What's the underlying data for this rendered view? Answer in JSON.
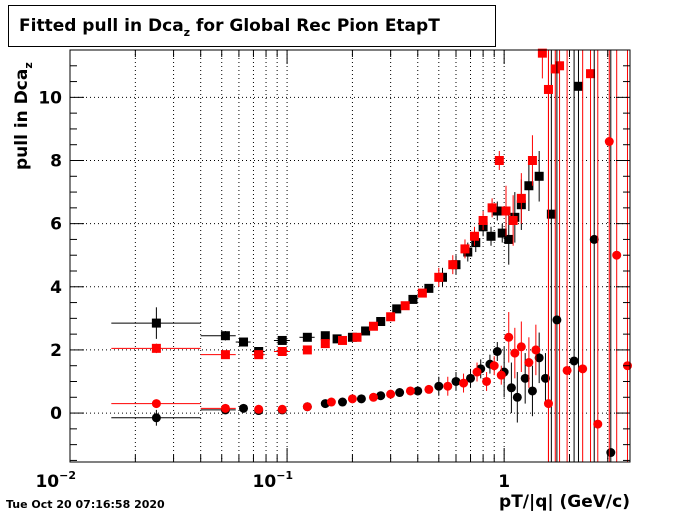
{
  "title": {
    "main": "Fitted pull in Dca",
    "sub": "z",
    "rest": " for Global Rec Pion EtapT"
  },
  "ylabel": {
    "main": "pull in Dca",
    "sub": "z"
  },
  "xlabel": "pT/|q| (GeV/c)",
  "timestamp": "Tue Oct 20 07:16:58 2020",
  "colors": {
    "black": "#000000",
    "red": "#ff0000"
  },
  "chart_data": {
    "type": "scatter",
    "xscale": "log",
    "xlim": [
      0.01,
      3.8
    ],
    "ylim": [
      -1.55,
      11.5
    ],
    "grid": true,
    "x_tick_labels": [
      {
        "value": 0.01,
        "base": "10",
        "exp": "−2"
      },
      {
        "value": 0.1,
        "base": "10",
        "exp": "−1"
      },
      {
        "value": 1,
        "base": "1",
        "exp": ""
      }
    ],
    "y_tick_labels": [
      0,
      2,
      4,
      6,
      8,
      10
    ],
    "series": [
      {
        "color": "black",
        "marker": "square",
        "points": [
          {
            "x": 0.025,
            "y": 2.85,
            "xerr": [
              0.0095,
              0.015
            ],
            "yerr": 0.5
          },
          {
            "x": 0.052,
            "y": 2.45,
            "xerr": [
              0.012,
              0.006
            ],
            "yerr": 0.15
          },
          {
            "x": 0.063,
            "y": 2.25,
            "xerr": [
              0.005,
              0.005
            ],
            "yerr": 0.12
          },
          {
            "x": 0.074,
            "y": 1.95,
            "xerr": [
              0.005,
              0.005
            ],
            "yerr": 0.1
          },
          {
            "x": 0.095,
            "y": 2.3,
            "xerr": [
              0.008,
              0.008
            ],
            "yerr": 0.1
          },
          {
            "x": 0.124,
            "y": 2.4,
            "xerr": [
              0.01,
              0.01
            ],
            "yerr": 0.1
          },
          {
            "x": 0.15,
            "y": 2.45
          },
          {
            "x": 0.17,
            "y": 2.35
          },
          {
            "x": 0.2,
            "y": 2.4
          },
          {
            "x": 0.23,
            "y": 2.6
          },
          {
            "x": 0.27,
            "y": 2.9
          },
          {
            "x": 0.32,
            "y": 3.3
          },
          {
            "x": 0.38,
            "y": 3.6
          },
          {
            "x": 0.45,
            "y": 3.95
          },
          {
            "x": 0.52,
            "y": 4.3
          },
          {
            "x": 0.6,
            "y": 4.7
          },
          {
            "x": 0.68,
            "y": 5.1
          },
          {
            "x": 0.74,
            "y": 5.4
          },
          {
            "x": 0.8,
            "y": 5.9
          },
          {
            "x": 0.87,
            "y": 5.6
          },
          {
            "x": 0.93,
            "y": 6.4
          },
          {
            "x": 0.98,
            "y": 5.7
          },
          {
            "x": 1.05,
            "y": 5.5
          },
          {
            "x": 1.12,
            "y": 6.2
          },
          {
            "x": 1.2,
            "y": 6.6
          },
          {
            "x": 1.3,
            "y": 7.2
          },
          {
            "x": 1.45,
            "y": 7.5
          },
          {
            "x": 1.65,
            "y": 6.3
          },
          {
            "x": 2.2,
            "y": 10.35
          }
        ]
      },
      {
        "color": "red",
        "marker": "square",
        "points": [
          {
            "x": 0.025,
            "y": 2.05,
            "xerr": [
              0.0095,
              0.015
            ],
            "yerr": 0.15
          },
          {
            "x": 0.052,
            "y": 1.85,
            "xerr": [
              0.012,
              0.006
            ],
            "yerr": 0.08
          },
          {
            "x": 0.074,
            "y": 1.85,
            "xerr": [
              0.005,
              0.005
            ],
            "yerr": 0.07
          },
          {
            "x": 0.095,
            "y": 1.95,
            "xerr": [
              0.008,
              0.008
            ],
            "yerr": 0.07
          },
          {
            "x": 0.124,
            "y": 2.0
          },
          {
            "x": 0.15,
            "y": 2.2
          },
          {
            "x": 0.18,
            "y": 2.3
          },
          {
            "x": 0.21,
            "y": 2.4
          },
          {
            "x": 0.25,
            "y": 2.75
          },
          {
            "x": 0.3,
            "y": 3.05
          },
          {
            "x": 0.35,
            "y": 3.4
          },
          {
            "x": 0.42,
            "y": 3.8
          },
          {
            "x": 0.5,
            "y": 4.3
          },
          {
            "x": 0.58,
            "y": 4.7
          },
          {
            "x": 0.66,
            "y": 5.2
          },
          {
            "x": 0.73,
            "y": 5.6
          },
          {
            "x": 0.8,
            "y": 6.1
          },
          {
            "x": 0.88,
            "y": 6.5
          },
          {
            "x": 0.95,
            "y": 8.0
          },
          {
            "x": 1.02,
            "y": 6.4
          },
          {
            "x": 1.1,
            "y": 6.1
          },
          {
            "x": 1.2,
            "y": 6.8
          },
          {
            "x": 1.35,
            "y": 8.0
          },
          {
            "x": 1.5,
            "y": 11.4
          },
          {
            "x": 1.6,
            "y": 10.25
          },
          {
            "x": 1.72,
            "y": 10.9
          },
          {
            "x": 1.8,
            "y": 11.0
          },
          {
            "x": 2.5,
            "y": 10.75
          }
        ]
      },
      {
        "color": "black",
        "marker": "circle",
        "points": [
          {
            "x": 0.025,
            "y": -0.15,
            "xerr": [
              0.0095,
              0.015
            ],
            "yerr": 0.25
          },
          {
            "x": 0.052,
            "y": 0.1,
            "xerr": [
              0.012,
              0.006
            ],
            "yerr": 0.08
          },
          {
            "x": 0.063,
            "y": 0.15
          },
          {
            "x": 0.074,
            "y": 0.08
          },
          {
            "x": 0.095,
            "y": 0.1
          },
          {
            "x": 0.124,
            "y": 0.2
          },
          {
            "x": 0.15,
            "y": 0.3
          },
          {
            "x": 0.18,
            "y": 0.35
          },
          {
            "x": 0.22,
            "y": 0.45
          },
          {
            "x": 0.27,
            "y": 0.55
          },
          {
            "x": 0.33,
            "y": 0.65
          },
          {
            "x": 0.4,
            "y": 0.7
          },
          {
            "x": 0.5,
            "y": 0.85
          },
          {
            "x": 0.6,
            "y": 1.0
          },
          {
            "x": 0.7,
            "y": 1.1
          },
          {
            "x": 0.78,
            "y": 1.4
          },
          {
            "x": 0.86,
            "y": 1.55
          },
          {
            "x": 0.93,
            "y": 1.95
          },
          {
            "x": 1.0,
            "y": 1.3
          },
          {
            "x": 1.08,
            "y": 0.8
          },
          {
            "x": 1.15,
            "y": 0.5
          },
          {
            "x": 1.25,
            "y": 1.1
          },
          {
            "x": 1.35,
            "y": 0.7
          },
          {
            "x": 1.45,
            "y": 1.75
          },
          {
            "x": 1.55,
            "y": 1.1
          },
          {
            "x": 1.75,
            "y": 2.95
          },
          {
            "x": 2.1,
            "y": 1.65
          },
          {
            "x": 2.6,
            "y": 5.5
          },
          {
            "x": 3.1,
            "y": -1.25
          }
        ]
      },
      {
        "color": "red",
        "marker": "circle",
        "points": [
          {
            "x": 0.025,
            "y": 0.3,
            "xerr": [
              0.0095,
              0.015
            ],
            "yerr": 0.1
          },
          {
            "x": 0.052,
            "y": 0.15,
            "xerr": [
              0.012,
              0.006
            ],
            "yerr": 0.05
          },
          {
            "x": 0.074,
            "y": 0.12
          },
          {
            "x": 0.095,
            "y": 0.12
          },
          {
            "x": 0.124,
            "y": 0.2
          },
          {
            "x": 0.16,
            "y": 0.35
          },
          {
            "x": 0.2,
            "y": 0.45
          },
          {
            "x": 0.25,
            "y": 0.5
          },
          {
            "x": 0.3,
            "y": 0.6
          },
          {
            "x": 0.37,
            "y": 0.7
          },
          {
            "x": 0.45,
            "y": 0.75
          },
          {
            "x": 0.55,
            "y": 0.85
          },
          {
            "x": 0.65,
            "y": 0.95
          },
          {
            "x": 0.75,
            "y": 1.3
          },
          {
            "x": 0.83,
            "y": 1.0
          },
          {
            "x": 0.9,
            "y": 1.5
          },
          {
            "x": 0.97,
            "y": 1.2
          },
          {
            "x": 1.05,
            "y": 2.4
          },
          {
            "x": 1.12,
            "y": 1.9
          },
          {
            "x": 1.2,
            "y": 2.1
          },
          {
            "x": 1.3,
            "y": 1.6
          },
          {
            "x": 1.4,
            "y": 2.0
          },
          {
            "x": 1.6,
            "y": 0.3
          },
          {
            "x": 1.95,
            "y": 1.35
          },
          {
            "x": 2.3,
            "y": 1.4
          },
          {
            "x": 2.7,
            "y": -0.35
          },
          {
            "x": 3.05,
            "y": 8.6
          },
          {
            "x": 3.3,
            "y": 5.0
          },
          {
            "x": 3.7,
            "y": 1.5
          }
        ]
      }
    ]
  }
}
